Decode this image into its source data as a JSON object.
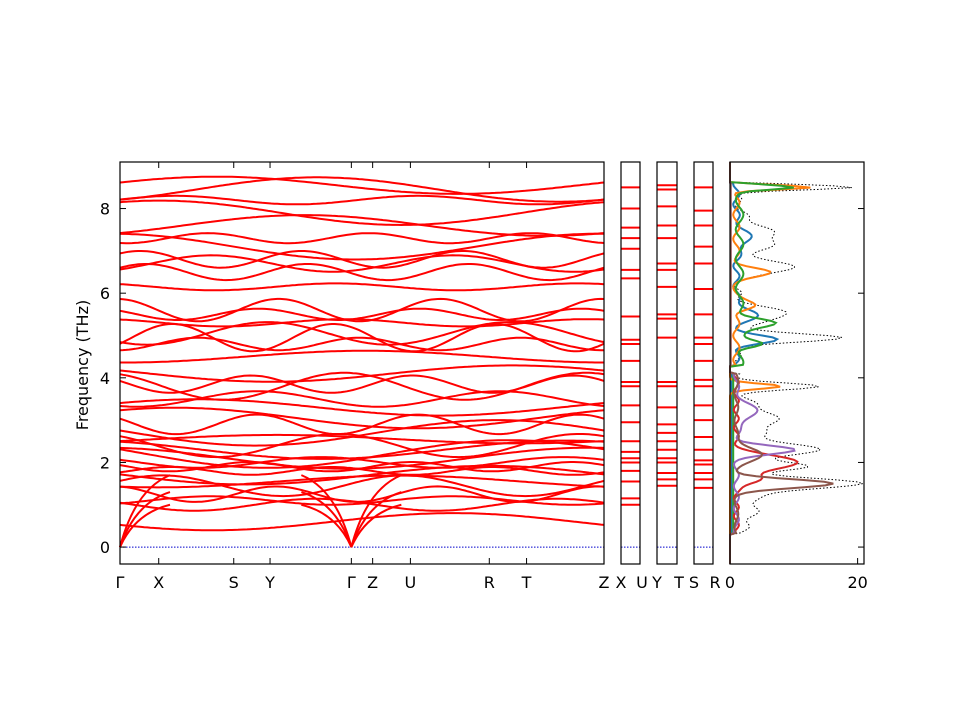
{
  "chart_data": {
    "type": "line",
    "ylabel": "Frequency (THz)",
    "ylim": [
      -0.4,
      9.1
    ],
    "yticks": [
      0,
      2,
      4,
      6,
      8
    ],
    "band_panels": [
      {
        "labels": [
          "Γ",
          "X",
          "S",
          "Y",
          "Γ",
          "Z",
          "U",
          "R",
          "T",
          "Z"
        ],
        "label_pos": [
          0,
          0.08,
          0.235,
          0.31,
          0.478,
          0.522,
          0.6,
          0.763,
          0.84,
          1
        ]
      },
      {
        "labels": [
          "X",
          "U"
        ],
        "label_pos": [
          0,
          1
        ]
      },
      {
        "labels": [
          "Y",
          "T"
        ],
        "label_pos": [
          0,
          1
        ]
      },
      {
        "labels": [
          "S",
          "R"
        ],
        "label_pos": [
          0,
          1
        ]
      }
    ],
    "band_levels": [
      0.6,
      1.0,
      1.1,
      1.25,
      1.45,
      1.55,
      1.7,
      1.8,
      1.9,
      2.0,
      2.1,
      2.2,
      2.3,
      2.4,
      2.55,
      2.7,
      2.9,
      3.05,
      3.3,
      3.5,
      3.8,
      3.85,
      4.1,
      4.5,
      4.8,
      4.95,
      5.05,
      5.3,
      5.5,
      5.6,
      6.15,
      6.5,
      6.7,
      6.8,
      7.1,
      7.3,
      7.6,
      7.9,
      8.2,
      8.45,
      8.55
    ],
    "short_panel_levels": [
      [
        1.0,
        1.15,
        1.55,
        1.8,
        2.0,
        2.1,
        2.25,
        2.5,
        2.95,
        3.35,
        3.8,
        3.9,
        4.4,
        4.8,
        4.9,
        5.45,
        6.35,
        6.55,
        7.05,
        7.3,
        7.55,
        8.0,
        8.5
      ],
      [
        1.45,
        1.6,
        1.75,
        2.0,
        2.1,
        2.3,
        2.5,
        2.7,
        2.9,
        3.3,
        3.8,
        3.9,
        4.95,
        5.4,
        5.5,
        6.15,
        6.55,
        6.7,
        7.3,
        7.6,
        8.05,
        8.45,
        8.55
      ],
      [
        1.4,
        1.6,
        1.75,
        1.95,
        2.05,
        2.3,
        2.6,
        3.0,
        3.35,
        3.8,
        3.95,
        4.4,
        4.8,
        4.95,
        5.5,
        6.1,
        6.7,
        7.1,
        7.6,
        7.95,
        8.5
      ]
    ],
    "dos": {
      "xlim": [
        0,
        21
      ],
      "xticks": [
        0,
        20
      ],
      "series_colors": [
        "#1f77b4",
        "#ff7f0e",
        "#2ca02c",
        "#d62728",
        "#9467bd",
        "#8c564b"
      ],
      "total_color": "#000000"
    }
  }
}
